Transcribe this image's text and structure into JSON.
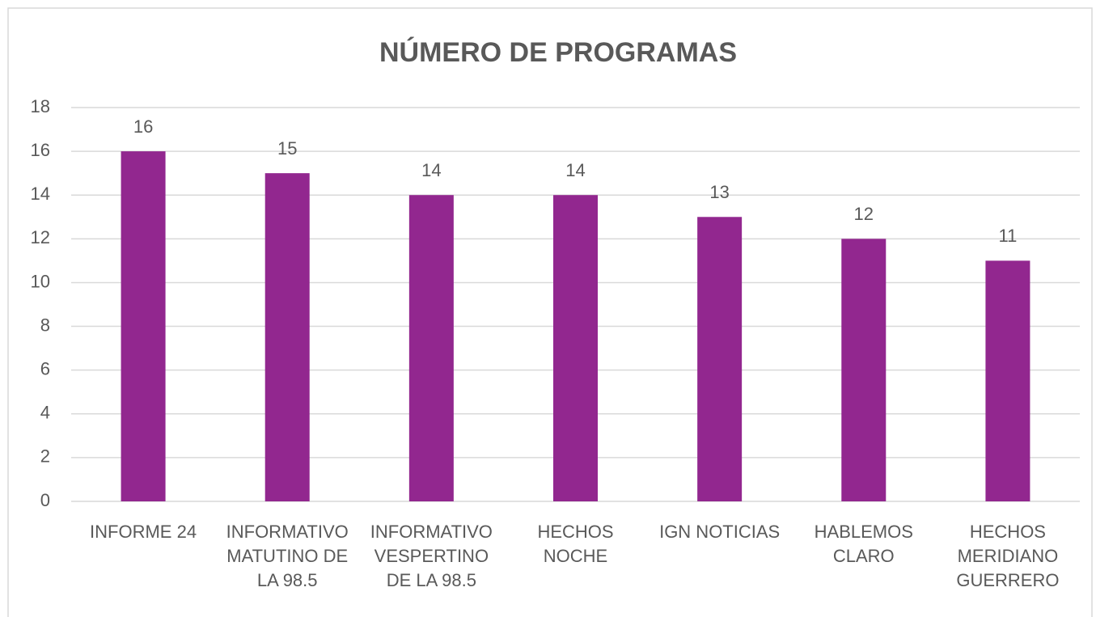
{
  "chart_data": {
    "type": "bar",
    "title": "NÚMERO DE PROGRAMAS",
    "categories": [
      "INFORME 24",
      "INFORMATIVO\nMATUTINO DE\nLA 98.5",
      "INFORMATIVO\nVESPERTINO\nDE LA 98.5",
      "HECHOS\nNOCHE",
      "IGN NOTICIAS",
      "HABLEMOS\nCLARO",
      "HECHOS\nMERIDIANO\nGUERRERO"
    ],
    "values": [
      16,
      15,
      14,
      14,
      13,
      12,
      11
    ],
    "color": "#92278f",
    "ylim": [
      0,
      18
    ],
    "yticks": [
      0,
      2,
      4,
      6,
      8,
      10,
      12,
      14,
      16,
      18
    ],
    "grid": true
  }
}
